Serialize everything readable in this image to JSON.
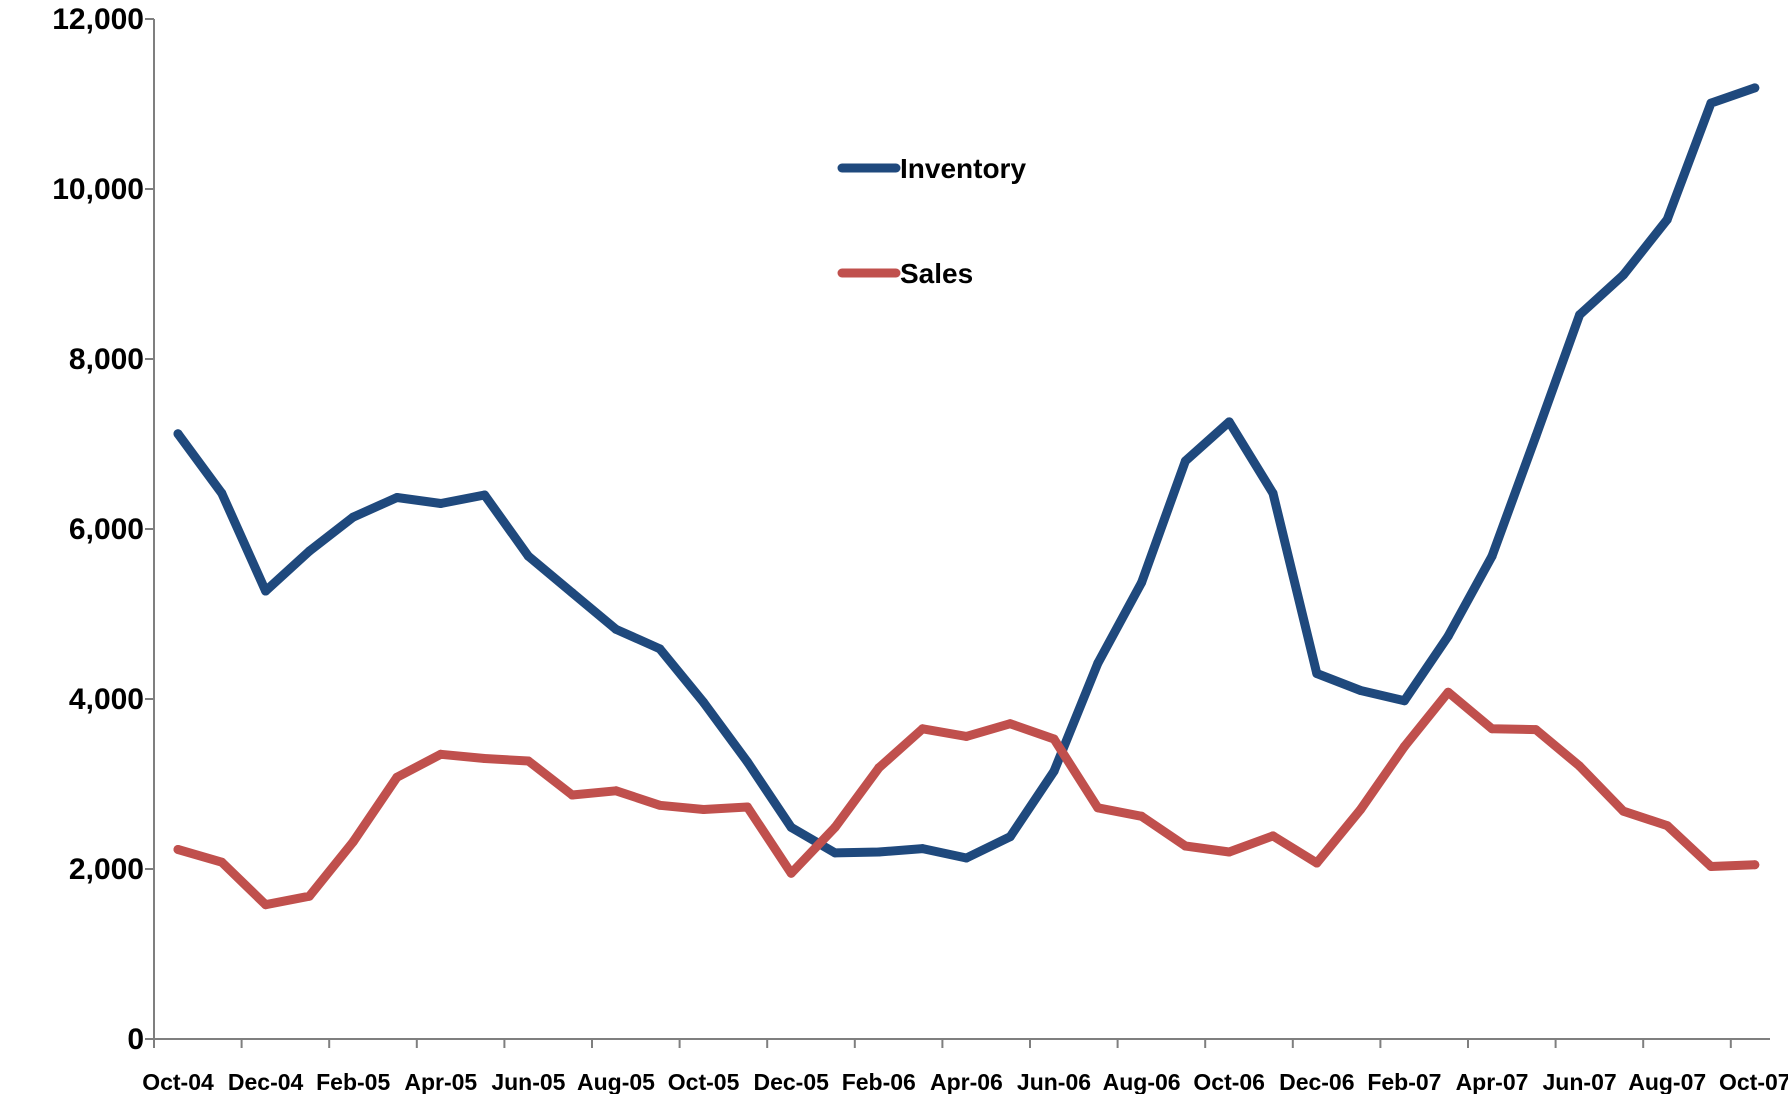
{
  "chart_data": {
    "type": "line",
    "title": "",
    "xlabel": "",
    "ylabel": "",
    "ylim": [
      0,
      12000
    ],
    "yticks": [
      0,
      2000,
      4000,
      6000,
      8000,
      10000,
      12000
    ],
    "ytick_labels": [
      "0",
      "2,000",
      "4,000",
      "6,000",
      "8,000",
      "10,000",
      "12,000"
    ],
    "grid": false,
    "legend_position": "top-center",
    "x": [
      "Oct-04",
      "Nov-04",
      "Dec-04",
      "Jan-05",
      "Feb-05",
      "Mar-05",
      "Apr-05",
      "May-05",
      "Jun-05",
      "Jul-05",
      "Aug-05",
      "Sep-05",
      "Oct-05",
      "Nov-05",
      "Dec-05",
      "Jan-06",
      "Feb-06",
      "Mar-06",
      "Apr-06",
      "May-06",
      "Jun-06",
      "Jul-06",
      "Aug-06",
      "Sep-06",
      "Oct-06",
      "Nov-06",
      "Dec-06",
      "Jan-07",
      "Feb-07",
      "Mar-07",
      "Apr-07",
      "May-07",
      "Jun-07",
      "Jul-07",
      "Aug-07",
      "Sep-07",
      "Oct-07"
    ],
    "xtick_labels": [
      "Oct-04",
      "Dec-04",
      "Feb-05",
      "Apr-05",
      "Jun-05",
      "Aug-05",
      "Oct-05",
      "Dec-05",
      "Feb-06",
      "Apr-06",
      "Jun-06",
      "Aug-06",
      "Oct-06",
      "Dec-06",
      "Feb-07",
      "Apr-07",
      "Jun-07",
      "Aug-07",
      "Oct-07"
    ],
    "series": [
      {
        "name": "Inventory",
        "color": "#1f497d",
        "values": [
          7120,
          6420,
          5270,
          5740,
          6140,
          6370,
          6300,
          6400,
          5680,
          5250,
          4820,
          4590,
          3960,
          3260,
          2490,
          2190,
          2200,
          2240,
          2130,
          2380,
          3150,
          4420,
          5370,
          6800,
          7260,
          6420,
          4300,
          4100,
          3980,
          4740,
          5680,
          7090,
          8520,
          8990,
          9640,
          11010,
          11190
        ]
      },
      {
        "name": "Sales",
        "color": "#c0504d",
        "values": [
          2230,
          2080,
          1580,
          1680,
          2320,
          3080,
          3350,
          3300,
          3270,
          2870,
          2920,
          2750,
          2700,
          2730,
          1950,
          2490,
          3190,
          3650,
          3560,
          3710,
          3530,
          2720,
          2620,
          2270,
          2200,
          2390,
          2070,
          2700,
          3440,
          4080,
          3650,
          3640,
          3210,
          2680,
          2510,
          2030,
          2050
        ]
      }
    ]
  }
}
